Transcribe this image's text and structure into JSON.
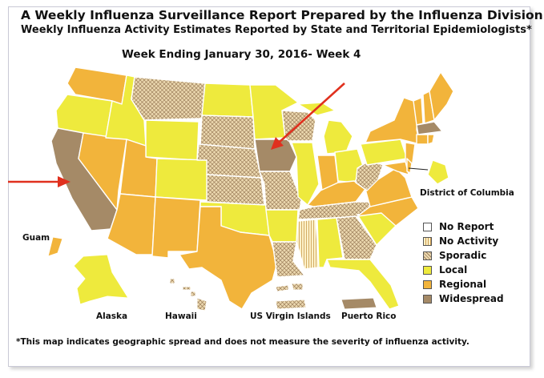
{
  "title_line1": "A Weekly Influenza Surveillance Report Prepared by the Influenza Division",
  "title_line2": "Weekly Influenza Activity Estimates Reported by State and Territorial Epidemiologists*",
  "week_label": "Week Ending January 30, 2016- Week 4",
  "footnote": "*This map indicates geographic spread and does not measure the severity of influenza activity.",
  "territory_labels": {
    "dc": "District of Columbia",
    "guam": "Guam",
    "alaska": "Alaska",
    "hawaii": "Hawaii",
    "usvi": "US Virgin Islands",
    "puerto_rico": "Puerto Rico"
  },
  "legend": [
    {
      "key": "no_report",
      "label": "No Report",
      "color": "#ffffff"
    },
    {
      "key": "no_activity",
      "label": "No Activity",
      "color": "#fdf1c8"
    },
    {
      "key": "sporadic",
      "label": "Sporadic",
      "color": "#ecd9b0"
    },
    {
      "key": "local",
      "label": "Local",
      "color": "#eeea3d"
    },
    {
      "key": "regional",
      "label": "Regional",
      "color": "#f2b43b"
    },
    {
      "key": "widespread",
      "label": "Widespread",
      "color": "#a58a67"
    }
  ],
  "activity_by_state": {
    "Washington": "regional",
    "Oregon": "local",
    "California": "widespread",
    "Nevada": "regional",
    "Idaho": "local",
    "Montana": "sporadic",
    "Wyoming": "local",
    "Utah": "regional",
    "Arizona": "regional",
    "Colorado": "local",
    "New Mexico": "regional",
    "North Dakota": "local",
    "South Dakota": "sporadic",
    "Nebraska": "sporadic",
    "Kansas": "sporadic",
    "Oklahoma": "local",
    "Texas": "regional",
    "Minnesota": "local",
    "Iowa": "widespread",
    "Missouri": "sporadic",
    "Arkansas": "local",
    "Louisiana": "sporadic",
    "Wisconsin": "sporadic",
    "Illinois": "local",
    "Michigan": "local",
    "Indiana": "regional",
    "Kentucky": "regional",
    "Tennessee": "sporadic",
    "Mississippi": "no_activity",
    "Alabama": "local",
    "Georgia": "sporadic",
    "Florida": "local",
    "Ohio": "local",
    "West Virginia": "sporadic",
    "Virginia": "regional",
    "North Carolina": "regional",
    "South Carolina": "local",
    "Pennsylvania": "local",
    "New York": "regional",
    "Vermont": "regional",
    "New Hampshire": "regional",
    "Maine": "regional",
    "Massachusetts": "widespread",
    "Connecticut": "regional",
    "New Jersey": "regional",
    "Maryland": "regional",
    "Delaware": "regional",
    "District of Columbia": "local",
    "Alaska": "local",
    "Hawaii": "sporadic",
    "Guam": "regional",
    "US Virgin Islands": "sporadic",
    "Puerto Rico": "widespread"
  }
}
